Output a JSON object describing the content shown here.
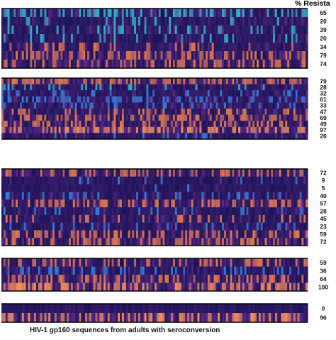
{
  "chart_data": {
    "type": "heatmap",
    "header": "% Resista",
    "xlabel": "HIV-1 gp160 sequences from adults with seroconversion",
    "colors": {
      "low": "#1d1458",
      "mid": "#5a2a86",
      "blue": "#2f7fd6",
      "cyan": "#2fb3c8",
      "orange": "#e07a4a",
      "bright": "#f4925a",
      "separator": "#000000",
      "background": "#ffffff"
    },
    "panels": [
      {
        "rows": [
          {
            "resistance": 65,
            "tint": "cyan"
          },
          {
            "resistance": 20,
            "tint": "cyan"
          },
          {
            "resistance": 39,
            "tint": "cyan"
          },
          {
            "resistance": 20,
            "tint": "cyan"
          },
          {
            "resistance": 34,
            "tint": "orange"
          },
          {
            "resistance": 79,
            "tint": "orange"
          },
          {
            "resistance": 74,
            "tint": "orange"
          }
        ]
      },
      {
        "rows": [
          {
            "resistance": 79,
            "tint": "orange"
          },
          {
            "resistance": 28,
            "tint": "cyan"
          },
          {
            "resistance": 32,
            "tint": "blue"
          },
          {
            "resistance": 61,
            "tint": "blue"
          },
          {
            "resistance": 33,
            "tint": "blue"
          },
          {
            "resistance": 47,
            "tint": "orange"
          },
          {
            "resistance": 69,
            "tint": "orange"
          },
          {
            "resistance": 49,
            "tint": "orange"
          },
          {
            "resistance": 97,
            "tint": "bright"
          },
          {
            "resistance": 26,
            "tint": "blue"
          }
        ]
      },
      {
        "rows": [
          {
            "resistance": 72,
            "tint": "orange"
          },
          {
            "resistance": 9,
            "tint": "blue"
          },
          {
            "resistance": 5,
            "tint": "blue"
          },
          {
            "resistance": 40,
            "tint": "blue"
          },
          {
            "resistance": 57,
            "tint": "orange"
          },
          {
            "resistance": 28,
            "tint": "blue"
          },
          {
            "resistance": 45,
            "tint": "orange"
          },
          {
            "resistance": 23,
            "tint": "blue"
          },
          {
            "resistance": 59,
            "tint": "orange"
          },
          {
            "resistance": 72,
            "tint": "orange"
          }
        ]
      },
      {
        "rows": [
          {
            "resistance": 59,
            "tint": "orange"
          },
          {
            "resistance": 36,
            "tint": "blue"
          },
          {
            "resistance": 64,
            "tint": "orange"
          },
          {
            "resistance": 100,
            "tint": "bright"
          }
        ]
      },
      {
        "rows": [
          {
            "resistance": 0,
            "tint": "blue"
          },
          {
            "resistance": 96,
            "tint": "bright"
          }
        ]
      }
    ]
  }
}
